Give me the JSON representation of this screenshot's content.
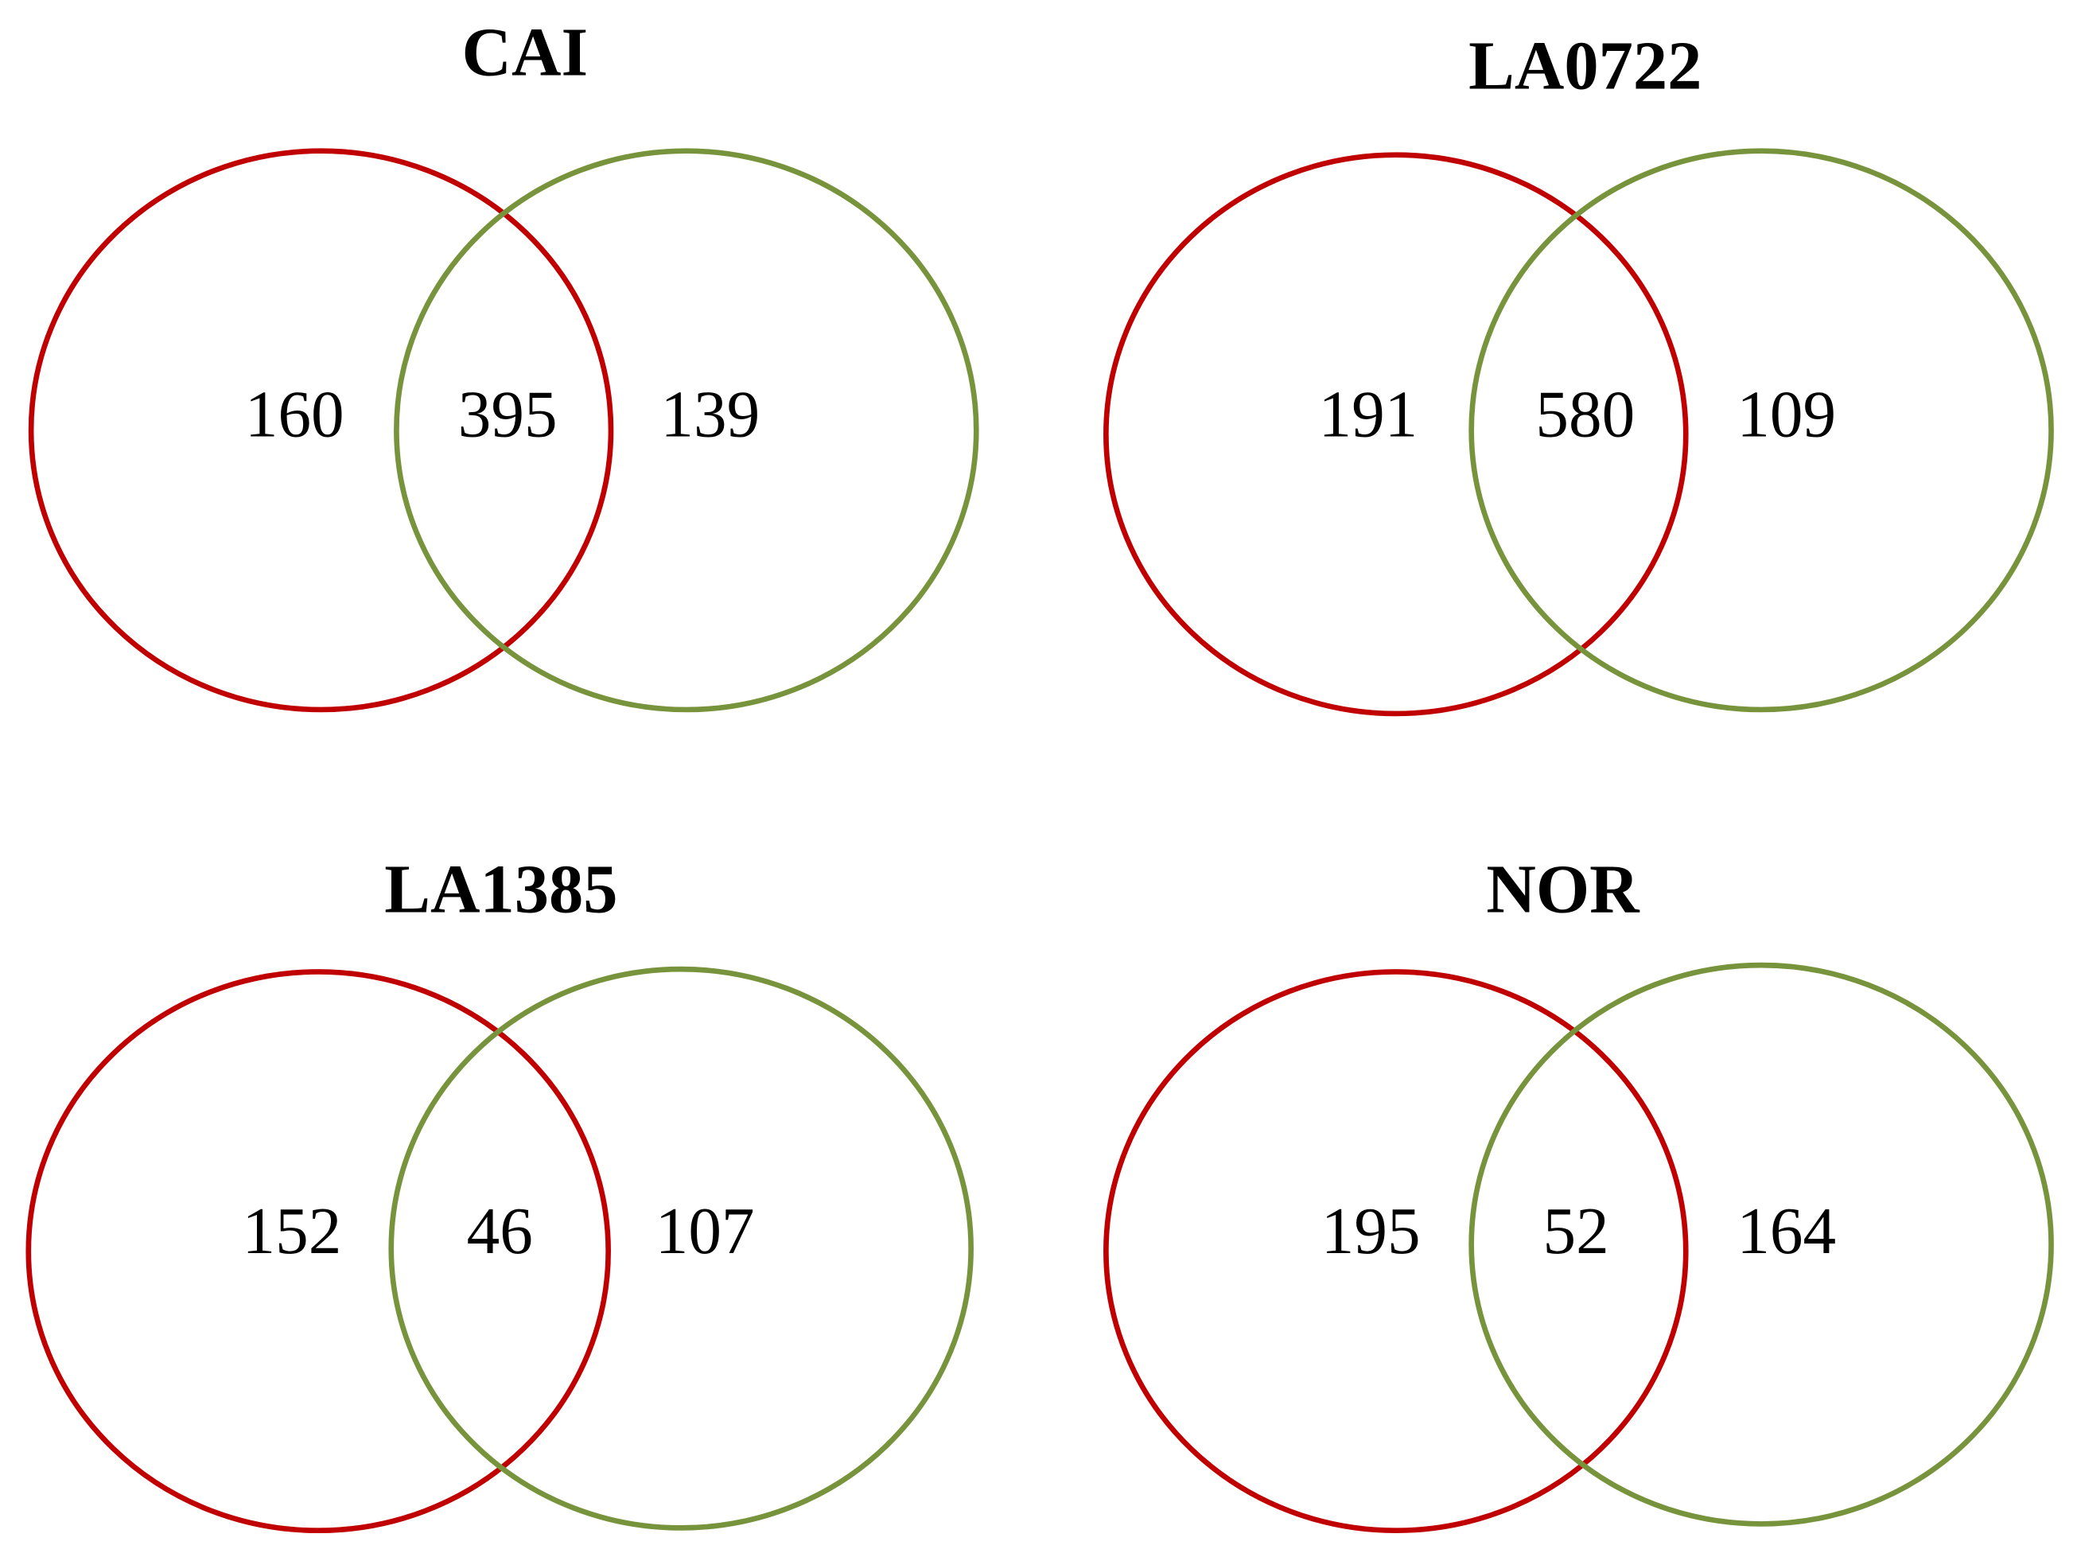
{
  "chart_data": [
    {
      "type": "venn",
      "title": "CAI",
      "values": [
        160,
        395,
        139
      ],
      "colors": [
        "#c00000",
        "#77933c"
      ]
    },
    {
      "type": "venn",
      "title": "LA0722",
      "values": [
        191,
        580,
        109
      ],
      "colors": [
        "#c00000",
        "#77933c"
      ]
    },
    {
      "type": "venn",
      "title": "LA1385",
      "values": [
        152,
        46,
        107
      ],
      "colors": [
        "#c00000",
        "#77933c"
      ]
    },
    {
      "type": "venn",
      "title": "NOR",
      "values": [
        195,
        52,
        164
      ],
      "colors": [
        "#c00000",
        "#77933c"
      ]
    }
  ]
}
